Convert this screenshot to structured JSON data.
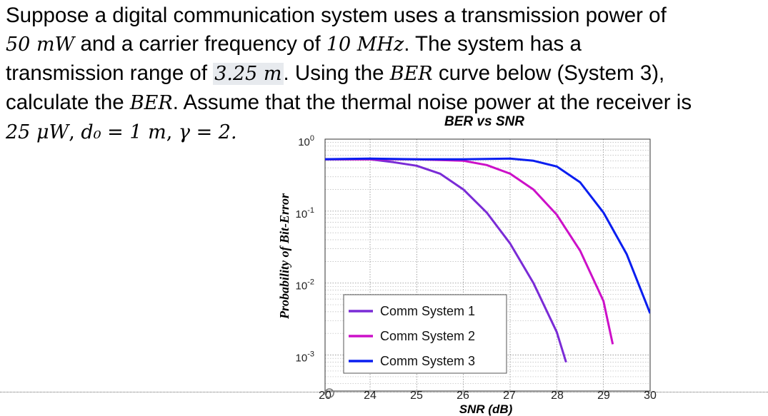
{
  "problem": {
    "t1": "Suppose a digital communication system uses a transmission power of",
    "power": "50 mW",
    "t2": " and a carrier frequency of ",
    "freq": "10 MHz",
    "t3": ". The system has a",
    "t4": "transmission range of ",
    "range": "3.25 m",
    "t5": ". Using the ",
    "ber1": "BER",
    "t6": " curve below (System 3),",
    "t7": "calculate the ",
    "ber2": "BER",
    "t8": ". Assume that the thermal noise power at the receiver is",
    "noise": "25 μW",
    "d0": "d₀ = 1 m",
    "gamma": "γ = 2."
  },
  "chart_data": {
    "type": "line",
    "title": "BER vs SNR",
    "xlabel": "SNR (dB)",
    "ylabel": "Probability of Bit-Error",
    "x_ticks": [
      "20",
      "24",
      "25",
      "26",
      "27",
      "28",
      "29",
      "30"
    ],
    "y_ticks": [
      {
        "base": "10",
        "exp": "0"
      },
      {
        "base": "10",
        "exp": "-1"
      },
      {
        "base": "10",
        "exp": "-2"
      },
      {
        "base": "10",
        "exp": "-3"
      }
    ],
    "grid": true,
    "legend_position": "bottom-left",
    "series": [
      {
        "name": "Comm System 1",
        "color": "#7a2bd6",
        "x": [
          23.0,
          24.0,
          24.5,
          25.0,
          25.5,
          26.0,
          26.5,
          27.0,
          27.5,
          28.0,
          28.2
        ],
        "log10_y": [
          -0.28,
          -0.28,
          -0.32,
          -0.37,
          -0.48,
          -0.7,
          -1.02,
          -1.45,
          -2.0,
          -2.68,
          -3.1
        ]
      },
      {
        "name": "Comm System 2",
        "color": "#cc10c8",
        "x": [
          23.0,
          24.0,
          25.0,
          26.0,
          26.5,
          27.0,
          27.5,
          28.0,
          28.5,
          29.0,
          29.2
        ],
        "log10_y": [
          -0.28,
          -0.28,
          -0.28,
          -0.3,
          -0.36,
          -0.48,
          -0.7,
          -1.05,
          -1.55,
          -2.25,
          -2.85
        ]
      },
      {
        "name": "Comm System 3",
        "color": "#0a1ef0",
        "x": [
          23.0,
          24.0,
          25.0,
          26.0,
          27.0,
          27.5,
          28.0,
          28.5,
          29.0,
          29.5,
          30.0
        ],
        "log10_y": [
          -0.28,
          -0.27,
          -0.28,
          -0.28,
          -0.27,
          -0.3,
          -0.38,
          -0.6,
          -1.02,
          -1.6,
          -2.42
        ]
      }
    ]
  }
}
